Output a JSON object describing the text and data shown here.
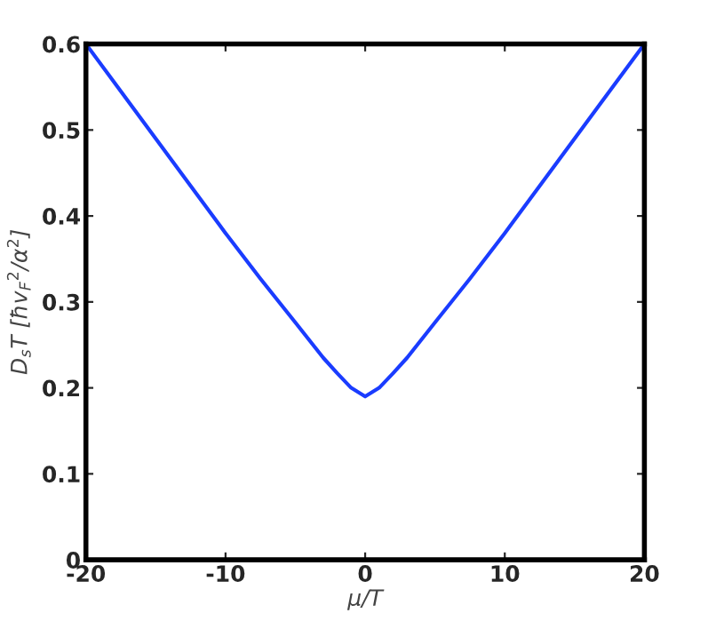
{
  "chart_data": {
    "type": "line",
    "xlabel": "μ/T",
    "ylabel": "D$_{s}$T [ħv$_{F}$$^{2}$/α$^{2}$]",
    "x": [
      -20,
      -17.5,
      -15,
      -12.5,
      -10,
      -7.5,
      -5,
      -3,
      -2,
      -1,
      0,
      1,
      2,
      3,
      5,
      7.5,
      10,
      12.5,
      15,
      17.5,
      20
    ],
    "series": [
      {
        "color": "#1a3cff",
        "values": [
          0.6,
          0.545,
          0.49,
          0.435,
          0.38,
          0.327,
          0.276,
          0.235,
          0.217,
          0.2,
          0.19,
          0.2,
          0.217,
          0.235,
          0.276,
          0.327,
          0.38,
          0.435,
          0.49,
          0.545,
          0.6
        ]
      }
    ],
    "xlim": [
      -20,
      20
    ],
    "ylim": [
      0,
      0.6
    ],
    "xticks": [
      -20,
      -10,
      0,
      10,
      20
    ],
    "yticks": [
      0,
      0.1,
      0.2,
      0.3,
      0.4,
      0.5,
      0.6
    ],
    "grid": false,
    "marker": "none",
    "line_style": "solid",
    "legend": false
  }
}
